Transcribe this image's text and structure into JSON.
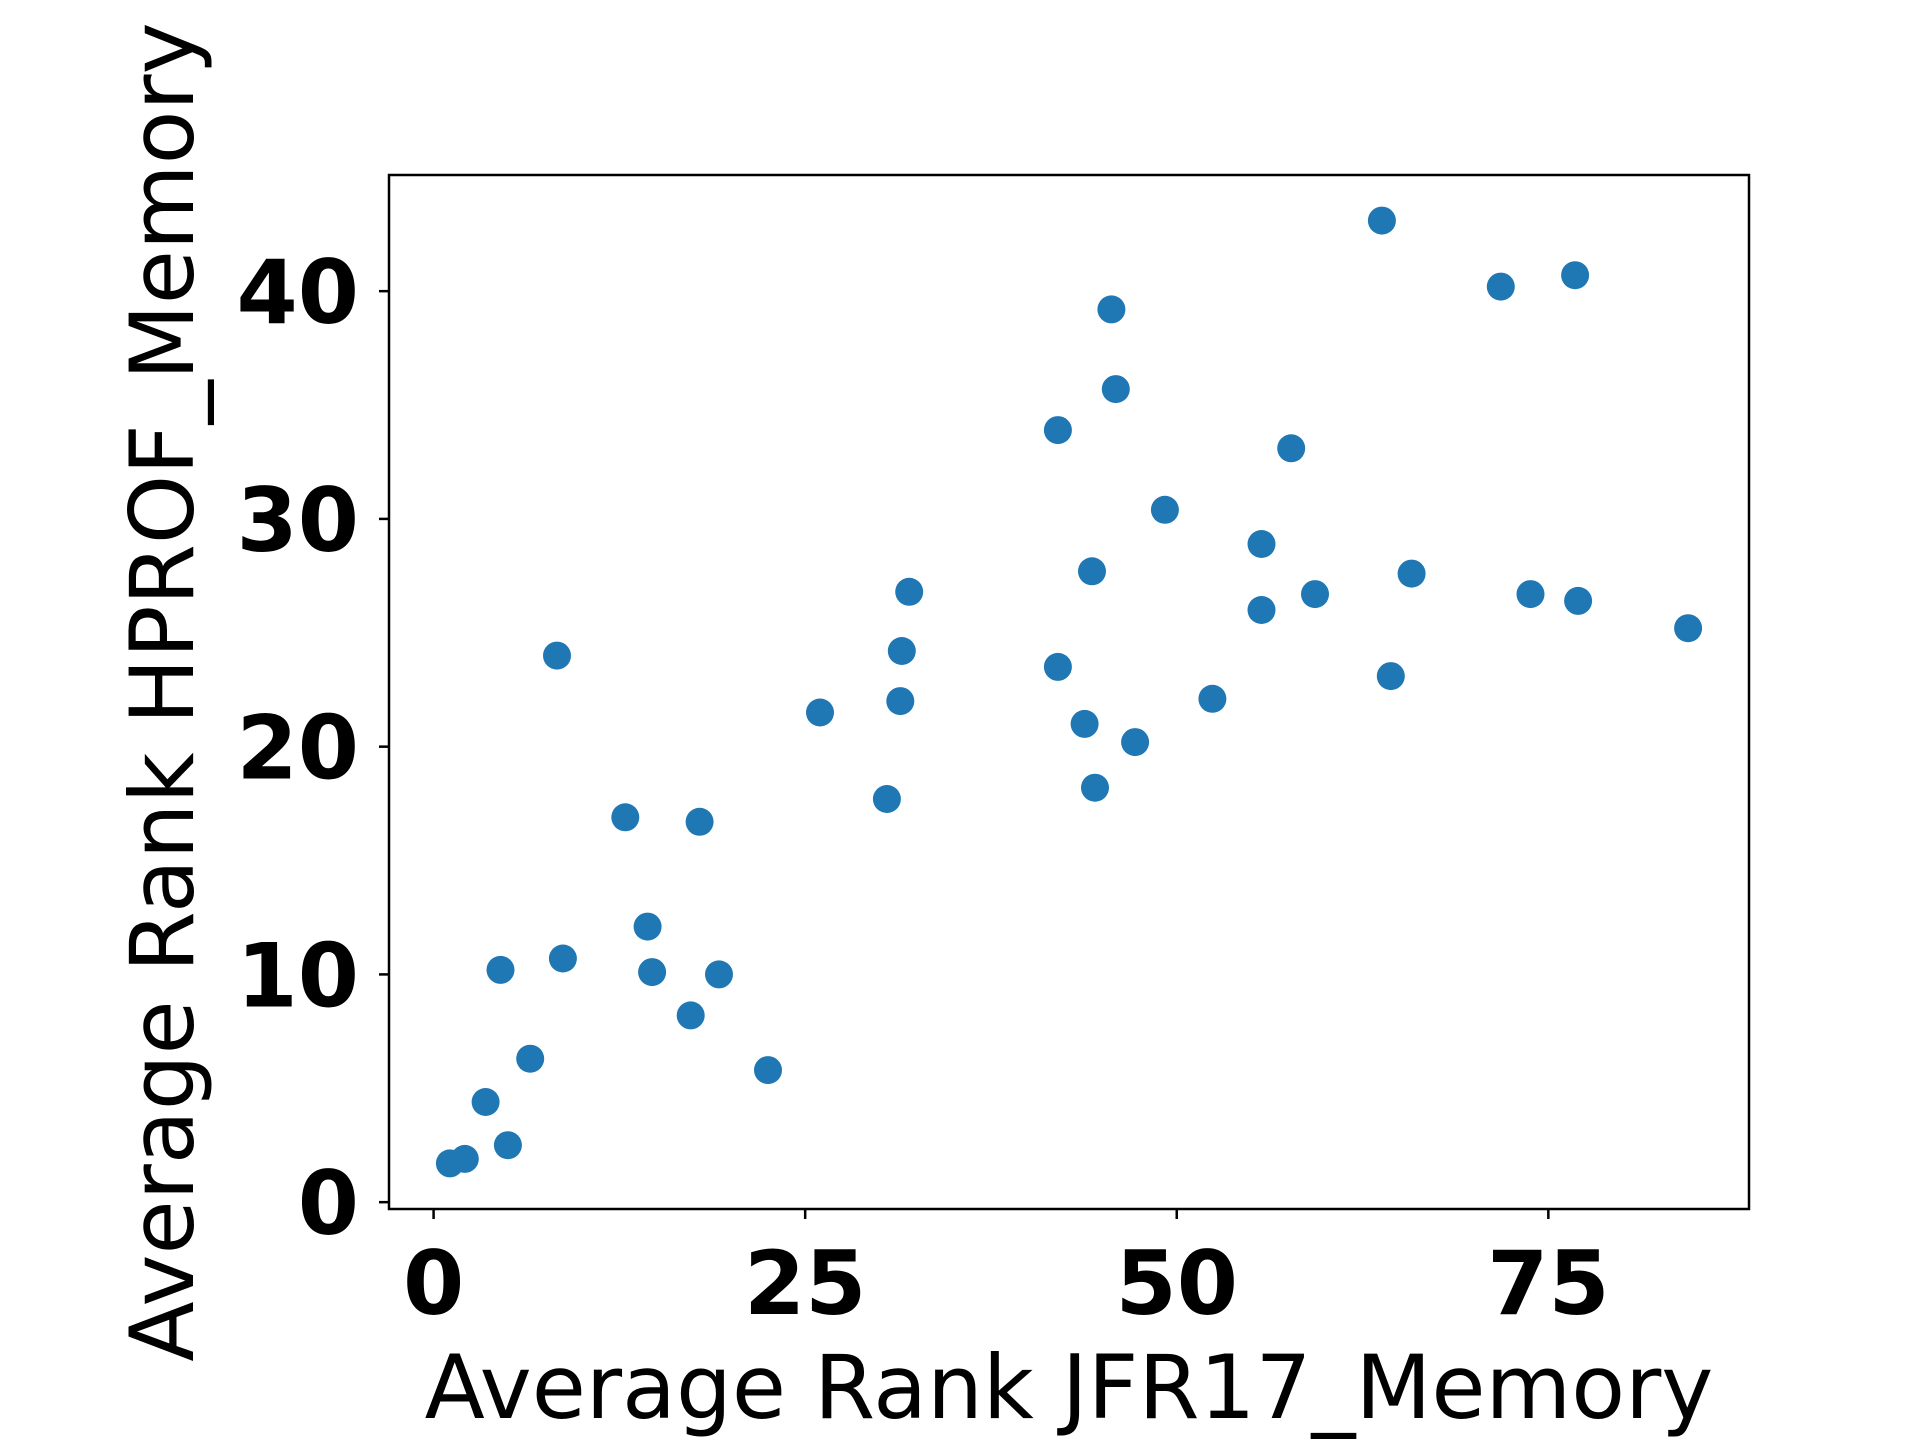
{
  "chart_data": {
    "type": "scatter",
    "title": "",
    "xlabel": "Average Rank JFR17_Memory",
    "ylabel": "Average Rank HPROF_Memory",
    "xlim": [
      -3,
      88.5
    ],
    "ylim": [
      -0.3,
      45.1
    ],
    "x_ticks": [
      0,
      25,
      50,
      75
    ],
    "y_ticks": [
      0,
      10,
      20,
      30,
      40
    ],
    "x_tick_labels": [
      "0",
      "25",
      "50",
      "75"
    ],
    "y_tick_labels": [
      "0",
      "10",
      "20",
      "30",
      "40"
    ],
    "grid": false,
    "legend": "none",
    "marker_color": "#1f77b4",
    "series": [
      {
        "points": [
          {
            "x": 1.1,
            "y": 1.7
          },
          {
            "x": 2.1,
            "y": 1.9
          },
          {
            "x": 3.5,
            "y": 4.4
          },
          {
            "x": 4.5,
            "y": 10.2
          },
          {
            "x": 5.0,
            "y": 2.5
          },
          {
            "x": 6.5,
            "y": 6.3
          },
          {
            "x": 8.3,
            "y": 24.0
          },
          {
            "x": 8.7,
            "y": 10.7
          },
          {
            "x": 12.9,
            "y": 16.9
          },
          {
            "x": 14.4,
            "y": 12.1
          },
          {
            "x": 14.7,
            "y": 10.1
          },
          {
            "x": 17.3,
            "y": 8.2
          },
          {
            "x": 17.9,
            "y": 16.7
          },
          {
            "x": 19.2,
            "y": 10.0
          },
          {
            "x": 22.5,
            "y": 5.8
          },
          {
            "x": 26.0,
            "y": 21.5
          },
          {
            "x": 30.5,
            "y": 17.7
          },
          {
            "x": 31.4,
            "y": 22.0
          },
          {
            "x": 31.5,
            "y": 24.2
          },
          {
            "x": 32.0,
            "y": 26.8
          },
          {
            "x": 42.0,
            "y": 33.9
          },
          {
            "x": 42.0,
            "y": 23.5
          },
          {
            "x": 43.8,
            "y": 21.0
          },
          {
            "x": 44.3,
            "y": 27.7
          },
          {
            "x": 44.5,
            "y": 18.2
          },
          {
            "x": 45.6,
            "y": 39.2
          },
          {
            "x": 45.9,
            "y": 35.7
          },
          {
            "x": 47.2,
            "y": 20.2
          },
          {
            "x": 49.2,
            "y": 30.4
          },
          {
            "x": 52.4,
            "y": 22.1
          },
          {
            "x": 55.7,
            "y": 28.9
          },
          {
            "x": 55.7,
            "y": 26.0
          },
          {
            "x": 57.7,
            "y": 33.1
          },
          {
            "x": 59.3,
            "y": 26.7
          },
          {
            "x": 63.8,
            "y": 43.1
          },
          {
            "x": 64.4,
            "y": 23.1
          },
          {
            "x": 65.8,
            "y": 27.6
          },
          {
            "x": 71.8,
            "y": 40.2
          },
          {
            "x": 73.8,
            "y": 26.7
          },
          {
            "x": 76.8,
            "y": 40.7
          },
          {
            "x": 77.0,
            "y": 26.4
          },
          {
            "x": 84.4,
            "y": 25.2
          }
        ]
      }
    ]
  }
}
